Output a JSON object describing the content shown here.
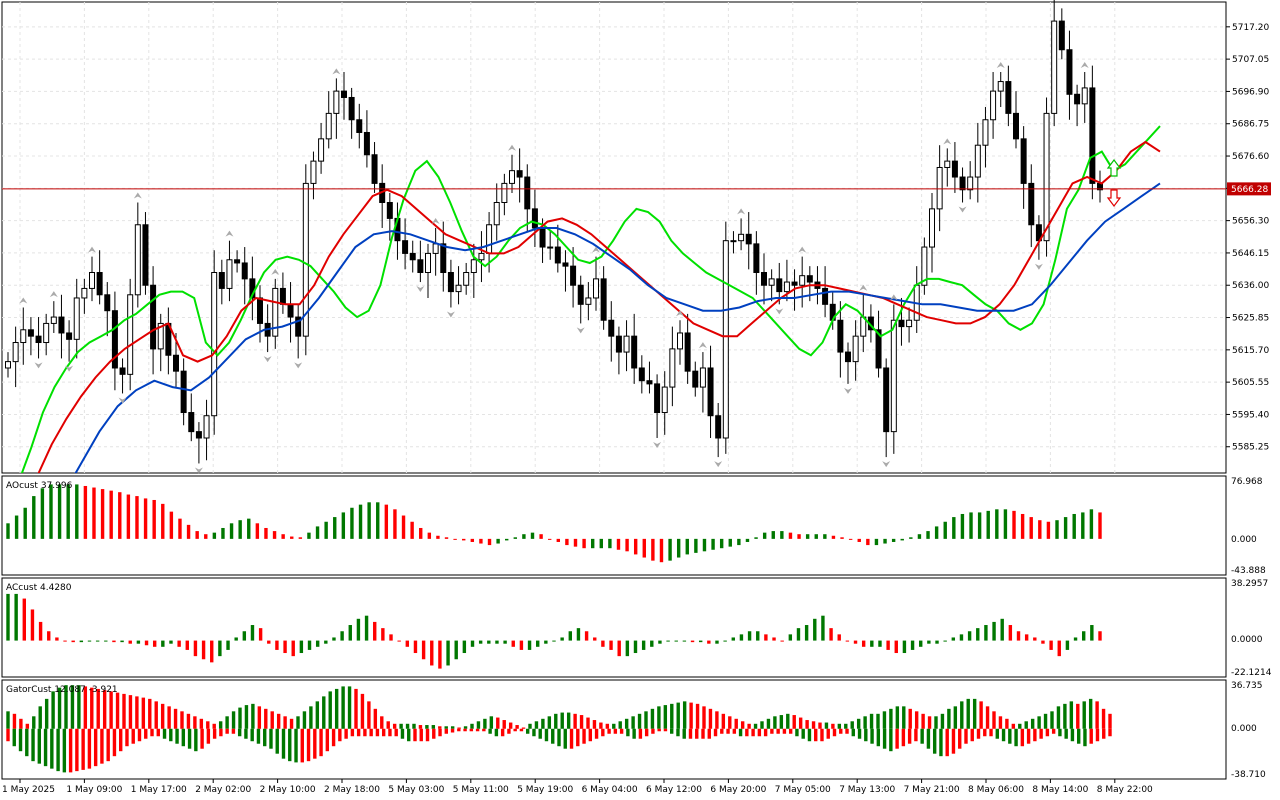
{
  "chart_data": [
    {
      "type": "candlestick",
      "panel": "price",
      "title": "",
      "ylim": [
        5577,
        5725
      ],
      "y_ticks": [
        "5717.20",
        "5707.05",
        "5696.90",
        "5686.75",
        "5676.60",
        "5666.45",
        "5656.30",
        "5646.15",
        "5636.00",
        "5625.85",
        "5615.70",
        "5605.55",
        "5595.40",
        "5585.25"
      ],
      "y_tick_values": [
        5717.2,
        5707.05,
        5696.9,
        5686.75,
        5676.6,
        5666.45,
        5656.3,
        5646.15,
        5636.0,
        5625.85,
        5615.7,
        5605.55,
        5595.4,
        5585.25
      ],
      "current_price": 5666.28,
      "current_price_label": "5666.28",
      "x_labels": [
        "1 May 2025",
        "1 May 09:00",
        "1 May 17:00",
        "2 May 02:00",
        "2 May 10:00",
        "2 May 18:00",
        "5 May 03:00",
        "5 May 11:00",
        "5 May 19:00",
        "6 May 04:00",
        "6 May 12:00",
        "6 May 20:00",
        "7 May 05:00",
        "7 May 13:00",
        "7 May 21:00",
        "8 May 06:00",
        "8 May 14:00",
        "8 May 22:00"
      ],
      "closes": [
        5612,
        5618,
        5622,
        5620,
        5618,
        5624,
        5626,
        5621,
        5619,
        5632,
        5635,
        5640,
        5633,
        5628,
        5610,
        5608,
        5633,
        5655,
        5636,
        5616,
        5624,
        5614,
        5609,
        5596,
        5590,
        5588,
        5595,
        5640,
        5635,
        5644,
        5643,
        5638,
        5632,
        5624,
        5620,
        5635,
        5630,
        5626,
        5620,
        5668,
        5675,
        5682,
        5690,
        5697,
        5695,
        5688,
        5684,
        5677,
        5668,
        5662,
        5657,
        5650,
        5646,
        5644,
        5640,
        5646,
        5649,
        5640,
        5634,
        5636,
        5640,
        5644,
        5646,
        5655,
        5662,
        5668,
        5672,
        5670,
        5660,
        5654,
        5648,
        5648,
        5643,
        5642,
        5636,
        5630,
        5632,
        5638,
        5625,
        5620,
        5615,
        5620,
        5610,
        5606,
        5605,
        5596,
        5604,
        5616,
        5621,
        5609,
        5604,
        5610,
        5595,
        5588,
        5650,
        5650,
        5652,
        5649,
        5640,
        5636,
        5638,
        5634,
        5637,
        5636,
        5639,
        5637,
        5635,
        5630,
        5625,
        5615,
        5612,
        5620,
        5626,
        5622,
        5610,
        5590,
        5625,
        5623,
        5625,
        5636,
        5648,
        5660,
        5673,
        5675,
        5670,
        5666,
        5670,
        5680,
        5688,
        5697,
        5700,
        5690,
        5682,
        5668,
        5655,
        5650,
        5690,
        5719,
        5710,
        5696,
        5693,
        5698,
        5668,
        5666
      ],
      "ma_series": [
        {
          "name": "",
          "color": "#00e000",
          "values": [
            5570,
            5575,
            5585,
            5596,
            5604,
            5610,
            5615,
            5618,
            5620,
            5622,
            5625,
            5627,
            5630,
            5633,
            5634,
            5634,
            5632,
            5618,
            5614,
            5618,
            5625,
            5633,
            5640,
            5644,
            5645,
            5644,
            5642,
            5638,
            5634,
            5629,
            5626,
            5628,
            5636,
            5651,
            5663,
            5672,
            5675,
            5670,
            5662,
            5653,
            5645,
            5642,
            5645,
            5650,
            5654,
            5656,
            5655,
            5652,
            5648,
            5644,
            5643,
            5645,
            5650,
            5656,
            5660,
            5659,
            5656,
            5650,
            5646,
            5643,
            5640,
            5638,
            5636,
            5634,
            5632,
            5628,
            5624,
            5620,
            5616,
            5614,
            5618,
            5626,
            5630,
            5628,
            5624,
            5620,
            5622,
            5630,
            5636,
            5638,
            5638,
            5637,
            5636,
            5633,
            5630,
            5628,
            5624,
            5622,
            5624,
            5630,
            5644,
            5660,
            5666,
            5676,
            5678,
            5672,
            5674,
            5678,
            5682,
            5686
          ]
        },
        {
          "name": "",
          "color": "#e00000",
          "values": [
            5555,
            5565,
            5576,
            5586,
            5594,
            5601,
            5607,
            5612,
            5616,
            5619,
            5622,
            5624,
            5614,
            5612,
            5614,
            5620,
            5628,
            5632,
            5631,
            5630,
            5630,
            5636,
            5645,
            5652,
            5658,
            5664,
            5666,
            5664,
            5660,
            5656,
            5652,
            5650,
            5648,
            5646,
            5646,
            5648,
            5652,
            5656,
            5657,
            5655,
            5652,
            5648,
            5644,
            5640,
            5636,
            5632,
            5628,
            5624,
            5622,
            5620,
            5620,
            5624,
            5628,
            5632,
            5635,
            5636,
            5636,
            5635,
            5634,
            5633,
            5632,
            5630,
            5628,
            5626,
            5625,
            5624,
            5624,
            5626,
            5630,
            5636,
            5644,
            5652,
            5660,
            5668,
            5670,
            5668,
            5672,
            5678,
            5681,
            5678
          ]
        },
        {
          "name": "",
          "color": "#0040c0",
          "values": [
            5540,
            5550,
            5560,
            5570,
            5580,
            5590,
            5598,
            5603,
            5606,
            5604,
            5603,
            5607,
            5613,
            5619,
            5622,
            5623,
            5625,
            5632,
            5640,
            5648,
            5652,
            5653,
            5652,
            5650,
            5648,
            5647,
            5648,
            5650,
            5652,
            5654,
            5654,
            5652,
            5649,
            5645,
            5641,
            5636,
            5632,
            5630,
            5628,
            5628,
            5629,
            5631,
            5632,
            5632,
            5633,
            5634,
            5634,
            5633,
            5632,
            5631,
            5630,
            5630,
            5629,
            5628,
            5628,
            5628,
            5630,
            5636,
            5643,
            5650,
            5656,
            5660,
            5664,
            5668
          ]
        }
      ]
    },
    {
      "type": "bar",
      "panel": "AOcust",
      "title": "AOcust 37.996",
      "y_ticks": [
        "76.968",
        "0.000",
        "-43.888"
      ],
      "ylim": [
        -43.888,
        76.968
      ],
      "up_color": "#007700",
      "down_color": "#ff0000",
      "values": [
        20,
        30,
        40,
        55,
        65,
        70,
        70,
        70,
        70,
        68,
        66,
        64,
        62,
        60,
        57,
        55,
        52,
        50,
        45,
        35,
        26,
        18,
        10,
        6,
        8,
        14,
        20,
        24,
        26,
        20,
        14,
        10,
        6,
        3,
        2,
        8,
        16,
        22,
        28,
        34,
        40,
        44,
        47,
        47,
        44,
        38,
        30,
        22,
        14,
        8,
        4,
        2,
        0,
        -2,
        -4,
        -6,
        -8,
        -6,
        -2,
        2,
        6,
        8,
        6,
        0,
        -4,
        -8,
        -10,
        -12,
        -12,
        -12,
        -12,
        -14,
        -16,
        -20,
        -24,
        -28,
        -30,
        -28,
        -24,
        -20,
        -18,
        -16,
        -14,
        -12,
        -10,
        -8,
        -4,
        2,
        8,
        10,
        10,
        8,
        6,
        6,
        6,
        6,
        4,
        2,
        0,
        -4,
        -8,
        -8,
        -6,
        -4,
        -2,
        2,
        6,
        10,
        16,
        22,
        28,
        32,
        34,
        34,
        36,
        38,
        38,
        36,
        32,
        28,
        24,
        22,
        24,
        28,
        32,
        34,
        38,
        34
      ]
    },
    {
      "type": "bar",
      "panel": "ACcust",
      "title": "ACcust 4.4280",
      "y_ticks": [
        "38.2957",
        "0.0000",
        "-22.1214"
      ],
      "ylim": [
        -22.1214,
        38.2957
      ],
      "up_color": "#007700",
      "down_color": "#ff0000",
      "values": [
        30,
        30,
        27,
        20,
        12,
        6,
        2,
        0,
        -1,
        -1,
        0,
        0,
        0,
        -1,
        -1,
        -2,
        -2,
        -3,
        -4,
        -4,
        -2,
        -4,
        -6,
        -10,
        -12,
        -14,
        -10,
        -6,
        2,
        6,
        10,
        8,
        -2,
        -6,
        -8,
        -10,
        -8,
        -6,
        -4,
        -2,
        2,
        6,
        10,
        14,
        16,
        12,
        8,
        4,
        0,
        -4,
        -8,
        -12,
        -16,
        -18,
        -16,
        -12,
        -8,
        -4,
        -2,
        -2,
        -2,
        -2,
        -4,
        -6,
        -6,
        -4,
        -2,
        0,
        2,
        6,
        8,
        6,
        2,
        -4,
        -6,
        -10,
        -10,
        -8,
        -6,
        -4,
        -2,
        0,
        0,
        0,
        -1,
        -1,
        -2,
        -2,
        0,
        2,
        4,
        6,
        6,
        4,
        2,
        0,
        4,
        8,
        10,
        14,
        16,
        8,
        4,
        0,
        -2,
        -4,
        -4,
        -4,
        -6,
        -8,
        -8,
        -6,
        -4,
        -2,
        -2,
        0,
        2,
        4,
        6,
        8,
        10,
        12,
        14,
        10,
        6,
        4,
        2,
        -2,
        -6,
        -10,
        -6,
        2,
        6,
        10,
        6
      ]
    },
    {
      "type": "bar",
      "panel": "GatorCust",
      "title": "GatorCust 12.087 -3.921",
      "y_ticks": [
        "36.735",
        "0.000",
        "-38.710"
      ],
      "ylim": [
        -38.71,
        36.735
      ],
      "up_color": "#007700",
      "down_color": "#ff0000",
      "upper_values": [
        14,
        12,
        8,
        4,
        10,
        18,
        24,
        30,
        33,
        35,
        35,
        35,
        34,
        33,
        32,
        31,
        30,
        29,
        28,
        27,
        26,
        25,
        24,
        22,
        20,
        18,
        16,
        14,
        12,
        10,
        8,
        6,
        4,
        6,
        10,
        14,
        17,
        19,
        20,
        18,
        16,
        14,
        12,
        10,
        8,
        10,
        14,
        18,
        22,
        26,
        30,
        32,
        34,
        34,
        32,
        28,
        22,
        16,
        10,
        6,
        4,
        4,
        4,
        4,
        3,
        3,
        3,
        2,
        2,
        2,
        1,
        2,
        4,
        6,
        8,
        10,
        9,
        7,
        5,
        3,
        1,
        4,
        6,
        8,
        10,
        12,
        13,
        13,
        12,
        11,
        9,
        7,
        5,
        4,
        4,
        6,
        8,
        10,
        12,
        14,
        16,
        18,
        19,
        20,
        21,
        22,
        21,
        20,
        18,
        16,
        14,
        12,
        10,
        8,
        6,
        4,
        4,
        6,
        8,
        10,
        11,
        12,
        11,
        9,
        7,
        6,
        5,
        5,
        4,
        4,
        4,
        6,
        8,
        10,
        12,
        12,
        14,
        16,
        18,
        18,
        16,
        14,
        12,
        10,
        10,
        12,
        16,
        18,
        22,
        24,
        24,
        22,
        18,
        14,
        10,
        8,
        4,
        4,
        6,
        8,
        10,
        12,
        14,
        18,
        20,
        22,
        20,
        22,
        24,
        22,
        16,
        12
      ]
    },
    {
      "panel": "GatorCust-lower",
      "lower_values": [
        10,
        14,
        18,
        22,
        26,
        28,
        30,
        32,
        34,
        35,
        35,
        34,
        33,
        32,
        30,
        28,
        26,
        22,
        18,
        14,
        12,
        10,
        8,
        6,
        6,
        8,
        10,
        12,
        14,
        16,
        18,
        16,
        12,
        8,
        6,
        4,
        4,
        6,
        8,
        10,
        12,
        14,
        16,
        20,
        24,
        26,
        27,
        27,
        26,
        24,
        22,
        18,
        14,
        10,
        8,
        6,
        6,
        6,
        6,
        6,
        6,
        6,
        6,
        8,
        10,
        10,
        10,
        10,
        8,
        6,
        4,
        3,
        2,
        2,
        2,
        2,
        2,
        4,
        6,
        6,
        4,
        2,
        2,
        4,
        6,
        8,
        10,
        12,
        14,
        16,
        16,
        14,
        12,
        10,
        8,
        6,
        4,
        4,
        4,
        6,
        8,
        8,
        6,
        4,
        2,
        2,
        4,
        6,
        8,
        8,
        8,
        8,
        8,
        6,
        4,
        4,
        4,
        6,
        6,
        6,
        6,
        6,
        4,
        4,
        4,
        4,
        6,
        8,
        10,
        10,
        10,
        8,
        6,
        4,
        4,
        6,
        8,
        10,
        12,
        14,
        16,
        18,
        16,
        14,
        12,
        10,
        12,
        16,
        20,
        22,
        22,
        20,
        16,
        12,
        10,
        8,
        6,
        6,
        8,
        10,
        12,
        14,
        14,
        12,
        10,
        8,
        6,
        4,
        6,
        8,
        10,
        12,
        14,
        12,
        10,
        8,
        6
      ]
    }
  ],
  "side_labels": {
    "price_tag": "5666.28"
  }
}
